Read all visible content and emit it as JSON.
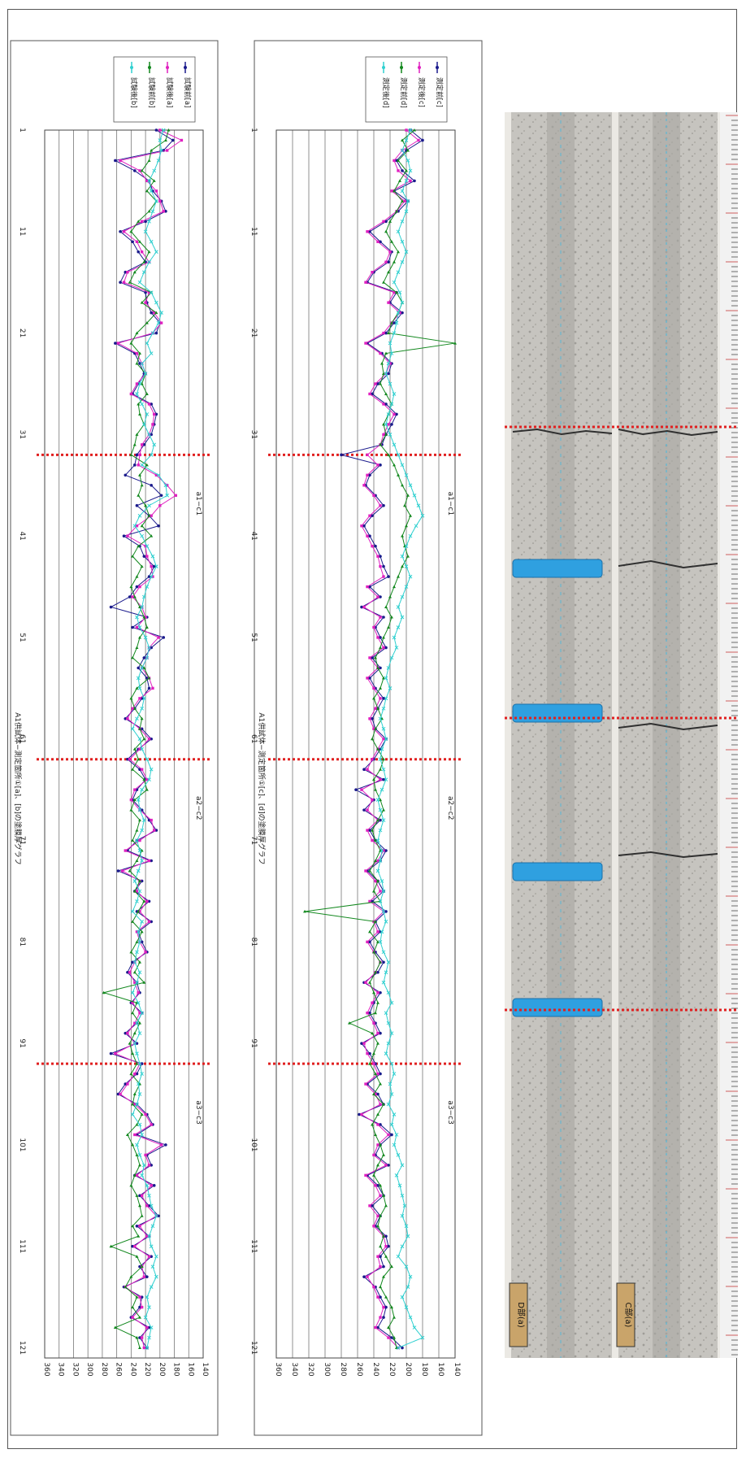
{
  "page": {
    "background": "#ffffff"
  },
  "chart_data": [
    {
      "type": "line",
      "title": "A1供試体−測定箇所①[a]、[b]の塗膜厚グラフ",
      "ylim": [
        140,
        360
      ],
      "y_ticks": [
        140,
        160,
        180,
        200,
        220,
        240,
        260,
        280,
        300,
        320,
        340,
        360
      ],
      "x_ticks": [
        1,
        11,
        21,
        31,
        41,
        51,
        61,
        71,
        81,
        91,
        101,
        111,
        121
      ],
      "grid": true,
      "legend_position": "top-right",
      "annotations": [
        "a1−c1",
        "a2−c2",
        "a3−c3"
      ],
      "crack_positions": [
        33,
        63,
        93
      ],
      "series": [
        {
          "name": "試験前[a]",
          "color": "#1a1a8c",
          "values": [
            205,
            182,
            195,
            262,
            235,
            215,
            210,
            198,
            192,
            220,
            255,
            238,
            230,
            220,
            248,
            255,
            220,
            218,
            212,
            200,
            205,
            262,
            235,
            228,
            222,
            230,
            238,
            212,
            205,
            208,
            212,
            222,
            232,
            235,
            248,
            212,
            198,
            232,
            215,
            202,
            250,
            228,
            222,
            208,
            215,
            232,
            242,
            268,
            218,
            238,
            195,
            212,
            222,
            230,
            218,
            215,
            225,
            235,
            248,
            225,
            212,
            230,
            245,
            228,
            220,
            232,
            238,
            225,
            215,
            205,
            232,
            245,
            212,
            258,
            225,
            235,
            215,
            232,
            212,
            230,
            225,
            218,
            238,
            245,
            232,
            228,
            240,
            225,
            232,
            248,
            232,
            268,
            225,
            232,
            248,
            258,
            232,
            218,
            210,
            232,
            192,
            218,
            212,
            235,
            208,
            228,
            215,
            202,
            232,
            215,
            238,
            212,
            228,
            218,
            250,
            225,
            228,
            240,
            215,
            228,
            218
          ]
        },
        {
          "name": "試験後[a]",
          "color": "#e020c0",
          "values": [
            200,
            170,
            190,
            255,
            228,
            218,
            205,
            200,
            195,
            225,
            250,
            232,
            225,
            215,
            245,
            250,
            215,
            220,
            208,
            198,
            210,
            258,
            232,
            225,
            220,
            232,
            240,
            215,
            208,
            210,
            215,
            225,
            228,
            230,
            205,
            190,
            178,
            200,
            212,
            232,
            245,
            220,
            218,
            212,
            210,
            228,
            238,
            225,
            220,
            232,
            202,
            215,
            218,
            225,
            215,
            210,
            228,
            238,
            245,
            228,
            215,
            228,
            242,
            225,
            218,
            235,
            240,
            228,
            212,
            208,
            228,
            248,
            215,
            252,
            228,
            232,
            218,
            228,
            215,
            232,
            228,
            220,
            235,
            242,
            235,
            230,
            238,
            228,
            235,
            245,
            235,
            262,
            228,
            235,
            245,
            255,
            235,
            220,
            212,
            235,
            198,
            220,
            215,
            232,
            212,
            225,
            218,
            205,
            228,
            218,
            235,
            215,
            225,
            222,
            248,
            228,
            225,
            238,
            218,
            225,
            222
          ]
        },
        {
          "name": "試験前[b]",
          "color": "#12881e",
          "values": [
            188,
            192,
            212,
            215,
            225,
            208,
            218,
            205,
            215,
            230,
            240,
            228,
            215,
            222,
            235,
            242,
            212,
            225,
            205,
            218,
            232,
            240,
            228,
            232,
            220,
            225,
            218,
            230,
            228,
            222,
            232,
            235,
            240,
            218,
            228,
            225,
            230,
            220,
            215,
            225,
            212,
            230,
            238,
            225,
            232,
            240,
            235,
            228,
            222,
            218,
            228,
            232,
            238,
            222,
            215,
            232,
            240,
            235,
            225,
            228,
            222,
            235,
            230,
            238,
            222,
            218,
            235,
            240,
            228,
            232,
            238,
            225,
            232,
            242,
            228,
            235,
            222,
            230,
            238,
            225,
            232,
            240,
            228,
            235,
            222,
            278,
            232,
            238,
            228,
            235,
            242,
            238,
            232,
            240,
            228,
            235,
            238,
            225,
            232,
            245,
            238,
            232,
            228,
            235,
            240,
            232,
            228,
            225,
            238,
            230,
            268,
            232,
            225,
            240,
            248,
            232,
            238,
            228,
            262,
            232,
            228
          ]
        },
        {
          "name": "試験後[b]",
          "color": "#30d0d0",
          "values": [
            195,
            200,
            198,
            202,
            208,
            215,
            212,
            205,
            210,
            215,
            220,
            212,
            205,
            215,
            222,
            228,
            212,
            205,
            198,
            202,
            210,
            218,
            212,
            225,
            220,
            228,
            232,
            225,
            218,
            222,
            215,
            208,
            212,
            225,
            202,
            192,
            190,
            215,
            228,
            235,
            225,
            218,
            210,
            205,
            212,
            218,
            222,
            225,
            232,
            228,
            220,
            215,
            218,
            225,
            230,
            228,
            222,
            225,
            232,
            238,
            228,
            225,
            218,
            212,
            215,
            225,
            230,
            228,
            222,
            225,
            232,
            228,
            225,
            230,
            235,
            228,
            232,
            238,
            225,
            230,
            228,
            232,
            235,
            228,
            232,
            238,
            230,
            225,
            232,
            228,
            235,
            232,
            228,
            225,
            230,
            228,
            232,
            238,
            228,
            225,
            232,
            228,
            222,
            225,
            218,
            215,
            212,
            205,
            210,
            215,
            212,
            205,
            210,
            205,
            212,
            218,
            215,
            220,
            212,
            215,
            218
          ]
        }
      ]
    },
    {
      "type": "line",
      "title": "A1供試体−測定箇所①[c]、[d]の塗膜厚グラフ",
      "ylim": [
        140,
        360
      ],
      "y_ticks": [
        140,
        160,
        180,
        200,
        220,
        240,
        260,
        280,
        300,
        320,
        340,
        360
      ],
      "x_ticks": [
        1,
        11,
        21,
        31,
        41,
        51,
        61,
        71,
        81,
        91,
        101,
        111,
        121
      ],
      "grid": true,
      "legend_position": "top-right",
      "annotations": [
        "a1−c1",
        "a2−c2",
        "a3−c3"
      ],
      "crack_positions": [
        33,
        63,
        93
      ],
      "series": [
        {
          "name": "測定前[c]",
          "color": "#1a1a8c",
          "values": [
            195,
            180,
            200,
            212,
            205,
            190,
            215,
            198,
            210,
            225,
            245,
            232,
            218,
            222,
            240,
            248,
            212,
            220,
            205,
            215,
            225,
            248,
            230,
            218,
            222,
            235,
            242,
            225,
            212,
            218,
            225,
            230,
            280,
            232,
            245,
            250,
            238,
            228,
            242,
            252,
            245,
            238,
            232,
            228,
            222,
            245,
            232,
            255,
            228,
            238,
            232,
            225,
            242,
            232,
            245,
            238,
            228,
            235,
            242,
            238,
            225,
            232,
            240,
            252,
            228,
            262,
            240,
            252,
            232,
            245,
            238,
            225,
            232,
            248,
            235,
            228,
            242,
            225,
            238,
            232,
            245,
            238,
            228,
            235,
            252,
            232,
            240,
            245,
            238,
            232,
            255,
            245,
            238,
            232,
            248,
            235,
            228,
            258,
            232,
            218,
            232,
            238,
            222,
            248,
            235,
            228,
            242,
            232,
            238,
            225,
            222,
            232,
            228,
            252,
            238,
            232,
            225,
            228,
            235,
            218,
            205
          ]
        },
        {
          "name": "測定後[c]",
          "color": "#e020c0",
          "values": [
            200,
            185,
            205,
            215,
            210,
            195,
            218,
            202,
            212,
            228,
            248,
            235,
            220,
            225,
            242,
            250,
            215,
            222,
            208,
            218,
            228,
            250,
            232,
            220,
            225,
            238,
            245,
            228,
            215,
            222,
            228,
            232,
            248,
            235,
            248,
            252,
            240,
            232,
            245,
            255,
            248,
            242,
            235,
            232,
            228,
            248,
            235,
            252,
            232,
            240,
            235,
            228,
            245,
            235,
            248,
            240,
            232,
            238,
            245,
            240,
            228,
            235,
            242,
            248,
            232,
            255,
            242,
            248,
            235,
            248,
            242,
            228,
            235,
            250,
            238,
            232,
            245,
            228,
            240,
            235,
            248,
            240,
            232,
            238,
            250,
            235,
            242,
            248,
            240,
            235,
            252,
            248,
            240,
            235,
            250,
            238,
            232,
            255,
            235,
            222,
            235,
            240,
            225,
            250,
            238,
            232,
            245,
            235,
            240,
            228,
            225,
            235,
            232,
            248,
            240,
            235,
            228,
            232,
            238,
            222,
            210
          ]
        },
        {
          "name": "測定前[d]",
          "color": "#12881e",
          "values": [
            190,
            205,
            198,
            210,
            200,
            208,
            215,
            205,
            212,
            220,
            225,
            218,
            210,
            215,
            222,
            228,
            212,
            205,
            210,
            218,
            222,
            140,
            225,
            230,
            228,
            232,
            225,
            218,
            222,
            228,
            225,
            232,
            222,
            215,
            210,
            205,
            198,
            202,
            195,
            200,
            205,
            202,
            198,
            205,
            210,
            215,
            220,
            225,
            218,
            222,
            228,
            232,
            238,
            235,
            228,
            232,
            240,
            235,
            230,
            238,
            242,
            235,
            228,
            232,
            240,
            238,
            232,
            228,
            235,
            242,
            238,
            232,
            238,
            245,
            235,
            240,
            232,
            325,
            238,
            245,
            235,
            240,
            232,
            238,
            245,
            240,
            235,
            238,
            270,
            242,
            235,
            240,
            245,
            238,
            232,
            240,
            228,
            235,
            242,
            238,
            232,
            228,
            235,
            240,
            232,
            228,
            225,
            232,
            235,
            228,
            232,
            225,
            218,
            228,
            232,
            225,
            218,
            215,
            222,
            215,
            212
          ]
        },
        {
          "name": "測定後[d]",
          "color": "#30d0d0",
          "values": [
            195,
            200,
            205,
            198,
            195,
            200,
            205,
            198,
            200,
            205,
            210,
            205,
            200,
            205,
            210,
            215,
            208,
            205,
            210,
            212,
            215,
            220,
            218,
            222,
            225,
            220,
            215,
            218,
            222,
            225,
            220,
            215,
            210,
            205,
            200,
            195,
            190,
            185,
            180,
            188,
            195,
            200,
            205,
            200,
            195,
            200,
            205,
            210,
            205,
            210,
            215,
            212,
            218,
            222,
            225,
            220,
            225,
            228,
            232,
            228,
            225,
            230,
            232,
            228,
            225,
            230,
            235,
            232,
            228,
            232,
            235,
            230,
            232,
            235,
            230,
            228,
            232,
            228,
            225,
            230,
            232,
            228,
            222,
            225,
            228,
            222,
            218,
            225,
            222,
            218,
            222,
            225,
            218,
            215,
            220,
            218,
            222,
            215,
            218,
            212,
            215,
            210,
            205,
            212,
            208,
            205,
            202,
            205,
            200,
            198,
            205,
            210,
            200,
            195,
            198,
            205,
            200,
            195,
            190,
            180,
            210
          ]
        }
      ]
    }
  ],
  "photo": {
    "label_top": "D部(a)",
    "label_bottom": "C部(a)",
    "colors": {
      "concrete": "#c4c2bd",
      "groove": "#a9a7a2",
      "clip": "#2fa0e0",
      "crack": "#303030",
      "ruler": "#f0f0f0",
      "marker": "#e02020"
    }
  }
}
